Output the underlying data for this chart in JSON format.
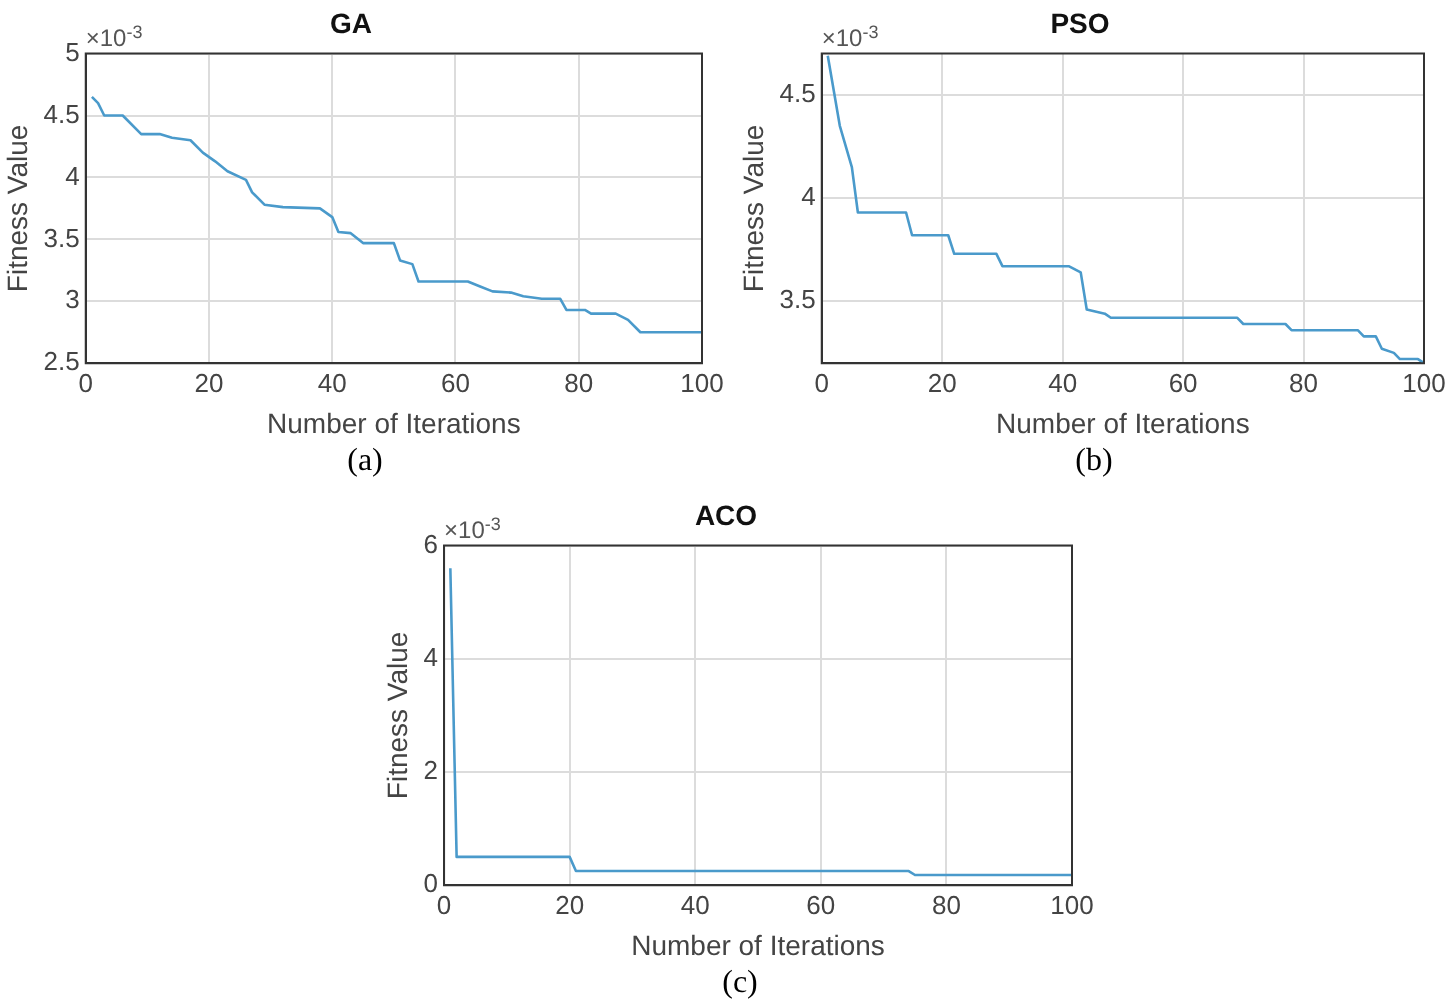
{
  "chart_data": [
    {
      "type": "line",
      "title": "GA",
      "xlabel": "Number of Iterations",
      "ylabel": "Fitness Value",
      "annotations": [
        "×10$^{-3}$",
        "(a)"
      ],
      "xlim": [
        0,
        100
      ],
      "xticks": [
        0,
        20,
        40,
        60,
        80,
        100
      ],
      "ylim": [
        2.5,
        5
      ],
      "yticks": [
        2.5,
        3,
        3.5,
        4,
        4.5,
        5
      ],
      "grid": true,
      "legend": false,
      "marker": "none",
      "line_style": "solid",
      "series": [
        {
          "color": "#4a9acb",
          "x": [
            1,
            2,
            3,
            6,
            9,
            12,
            14,
            17,
            19,
            21,
            23,
            26,
            27,
            29,
            32,
            38,
            40,
            41,
            43,
            45,
            50,
            51,
            53,
            54,
            62,
            64,
            66,
            69,
            71,
            74,
            77,
            78,
            81,
            82,
            86,
            88,
            90,
            100
          ],
          "values": [
            4.65,
            4.6,
            4.5,
            4.5,
            4.35,
            4.35,
            4.32,
            4.3,
            4.2,
            4.13,
            4.05,
            3.98,
            3.88,
            3.78,
            3.76,
            3.75,
            3.68,
            3.56,
            3.55,
            3.47,
            3.47,
            3.33,
            3.3,
            3.16,
            3.16,
            3.12,
            3.08,
            3.07,
            3.04,
            3.02,
            3.02,
            2.93,
            2.93,
            2.9,
            2.9,
            2.85,
            2.75,
            2.75
          ]
        }
      ]
    },
    {
      "type": "line",
      "title": "PSO",
      "xlabel": "Number of Iterations",
      "ylabel": "Fitness Value",
      "annotations": [
        "×10$^{-3}$",
        "(b)"
      ],
      "xlim": [
        0,
        100
      ],
      "xticks": [
        0,
        20,
        40,
        60,
        80,
        100
      ],
      "ylim": [
        3.2,
        4.7
      ],
      "yticks": [
        3.5,
        4,
        4.5
      ],
      "grid": true,
      "legend": false,
      "marker": "none",
      "line_style": "solid",
      "series": [
        {
          "color": "#4a9acb",
          "x": [
            1,
            3,
            5,
            6,
            14,
            15,
            21,
            22,
            29,
            30,
            41,
            43,
            44,
            47,
            48,
            69,
            70,
            77,
            78,
            89,
            90,
            92,
            93,
            95,
            96,
            99,
            100
          ],
          "values": [
            4.69,
            4.35,
            4.15,
            3.93,
            3.93,
            3.82,
            3.82,
            3.73,
            3.73,
            3.67,
            3.67,
            3.64,
            3.46,
            3.44,
            3.42,
            3.42,
            3.39,
            3.39,
            3.36,
            3.36,
            3.33,
            3.33,
            3.27,
            3.25,
            3.22,
            3.22,
            3.2
          ]
        }
      ]
    },
    {
      "type": "line",
      "title": "ACO",
      "xlabel": "Number of Iterations",
      "ylabel": "Fitness Value",
      "annotations": [
        "×10$^{-3}$",
        "(c)"
      ],
      "xlim": [
        0,
        100
      ],
      "xticks": [
        0,
        20,
        40,
        60,
        80,
        100
      ],
      "ylim": [
        0,
        6
      ],
      "yticks": [
        0,
        2,
        4,
        6
      ],
      "grid": true,
      "legend": false,
      "marker": "none",
      "line_style": "solid",
      "series": [
        {
          "color": "#4a9acb",
          "x": [
            1,
            2,
            20,
            21,
            74,
            75,
            100
          ],
          "values": [
            5.6,
            0.5,
            0.5,
            0.25,
            0.25,
            0.18,
            0.18
          ]
        }
      ]
    }
  ]
}
